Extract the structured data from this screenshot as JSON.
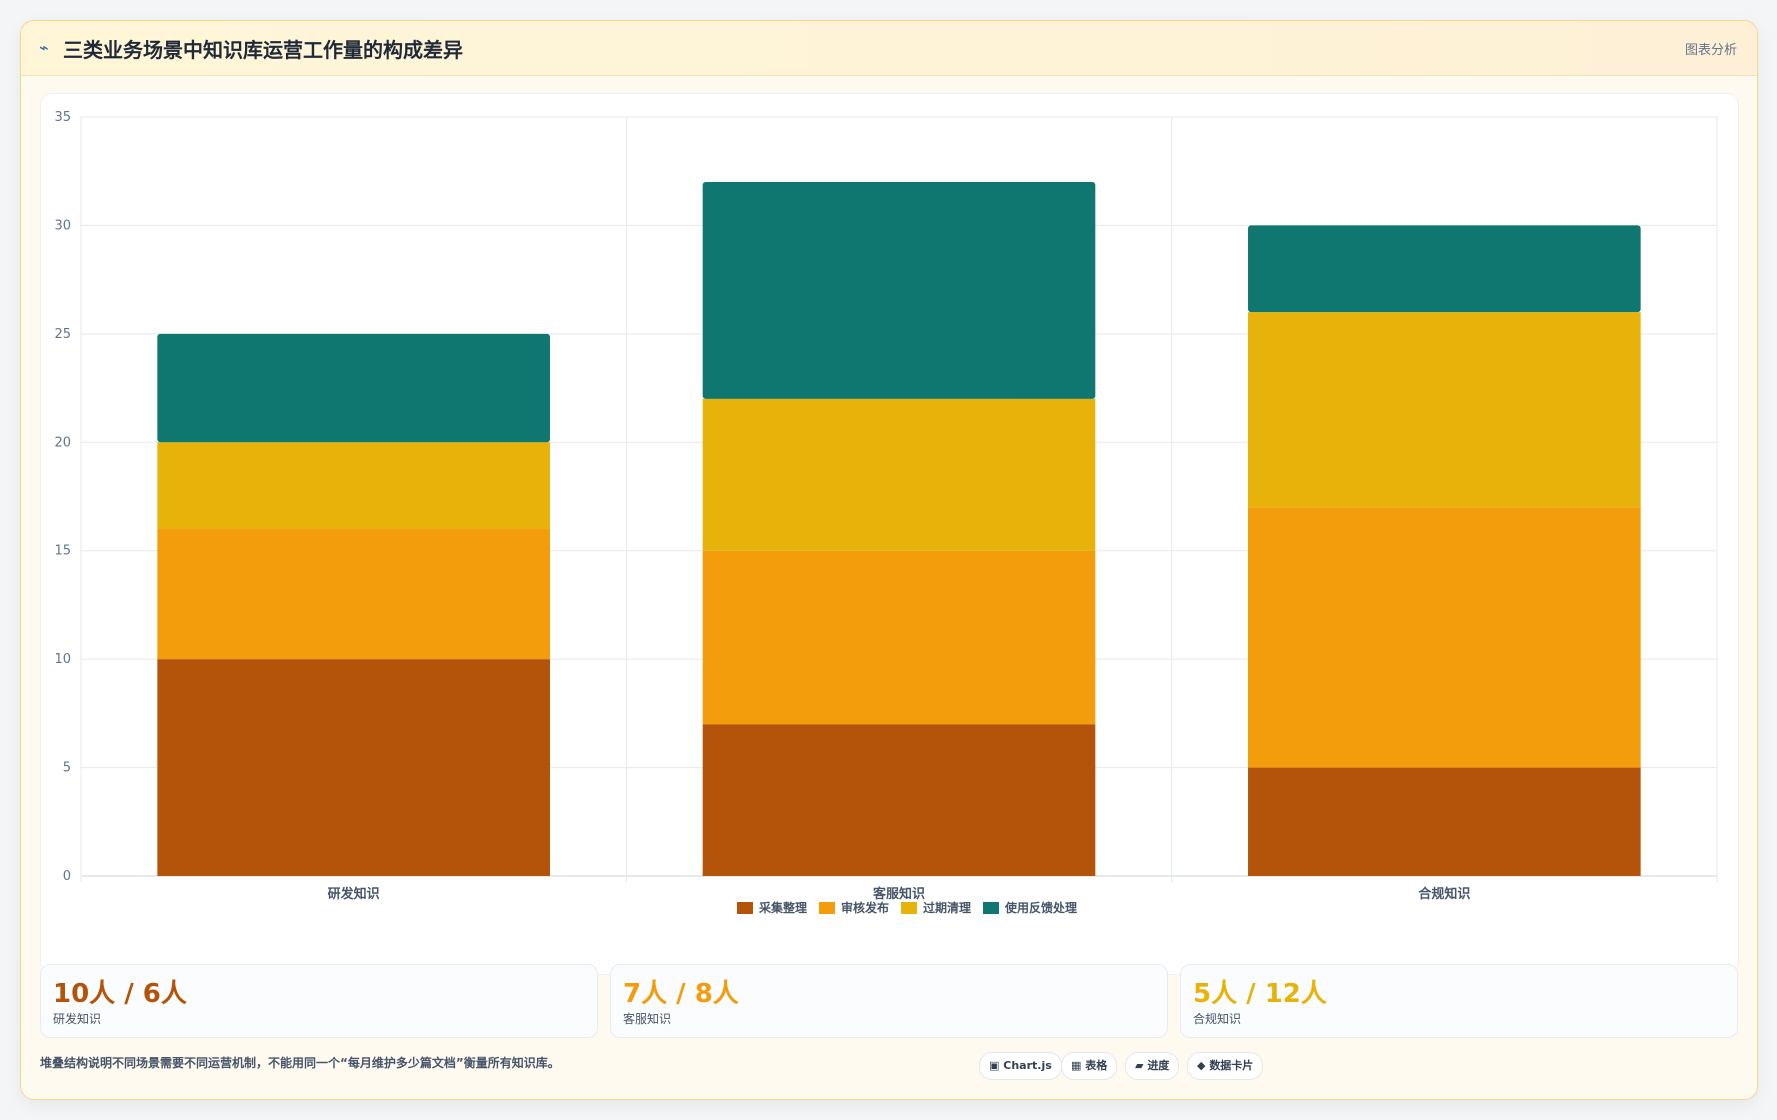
{
  "header": {
    "icon": "chart-icon",
    "title": "三类业务场景中知识库运营工作量的构成差异",
    "tag": "图表分析"
  },
  "chart_data": {
    "type": "bar",
    "stacked": true,
    "categories": [
      "研发知识",
      "客服知识",
      "合规知识"
    ],
    "series": [
      {
        "name": "采集整理",
        "color": "#b4540a",
        "values": [
          10,
          7,
          5
        ]
      },
      {
        "name": "审核发布",
        "color": "#f39c0c",
        "values": [
          6,
          8,
          12
        ]
      },
      {
        "name": "过期清理",
        "color": "#e7b30b",
        "values": [
          4,
          7,
          9
        ]
      },
      {
        "name": "使用反馈处理",
        "color": "#107770",
        "values": [
          5,
          10,
          4
        ]
      }
    ],
    "ylim": [
      0,
      35
    ],
    "yticks": [
      0,
      5,
      10,
      15,
      20,
      25,
      30,
      35
    ],
    "grid": true,
    "legend": "bottom"
  },
  "stats": [
    {
      "value": "10人 / 6人",
      "label": "研发知识",
      "color": "#b4540a"
    },
    {
      "value": "7人 / 8人",
      "label": "客服知识",
      "color": "#f39c0c"
    },
    {
      "value": "5人 / 12人",
      "label": "合规知识",
      "color": "#e7b30b"
    }
  ],
  "footer": {
    "note": "堆叠结构说明不同场景需要不同运营机制，不能用同一个“每月维护多少篇文档”衡量所有知识库。",
    "chips": [
      {
        "icon": "chart-js-icon",
        "glyph": "▣",
        "label": "Chart.js"
      },
      {
        "icon": "table-icon",
        "glyph": "▦",
        "label": "表格"
      },
      {
        "icon": "progress-icon",
        "glyph": "▰",
        "label": "进度"
      },
      {
        "icon": "data-card-icon",
        "glyph": "◆",
        "label": "数据卡片"
      }
    ]
  }
}
